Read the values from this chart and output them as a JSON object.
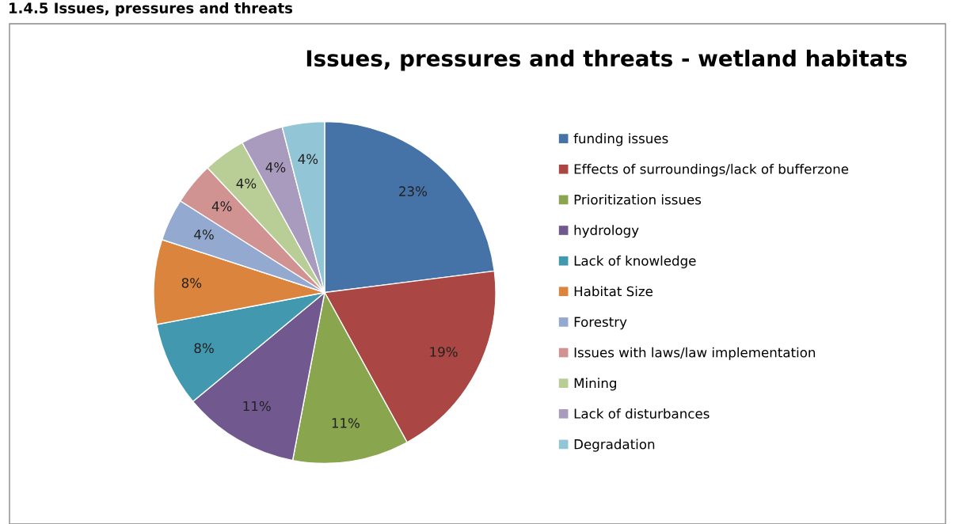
{
  "chart_data": {
    "type": "pie",
    "title": "Issues, pressures and threats - wetland habitats",
    "annotations": [
      "1.4.5 Issues, pressures and threats"
    ],
    "categories": [
      "funding issues",
      "Effects of surroundings/lack of bufferzone",
      "Prioritization issues",
      "hydrology",
      "Lack of knowledge",
      "Habitat Size",
      "Forestry",
      "Issues with laws/law implementation",
      "Mining",
      "Lack of disturbances",
      "Degradation"
    ],
    "values": [
      23,
      19,
      11,
      11,
      8,
      8,
      4,
      4,
      4,
      4,
      4
    ],
    "value_labels": [
      "23%",
      "19%",
      "11%",
      "11%",
      "8%",
      "8%",
      "4%",
      "4%",
      "4%",
      "4%",
      "4%"
    ],
    "colors": [
      "#4572a7",
      "#aa4643",
      "#89a54e",
      "#71588f",
      "#4198af",
      "#db843d",
      "#93a9cf",
      "#d19392",
      "#b9cd96",
      "#a99bbd",
      "#92c5d6"
    ],
    "legend": "right"
  }
}
